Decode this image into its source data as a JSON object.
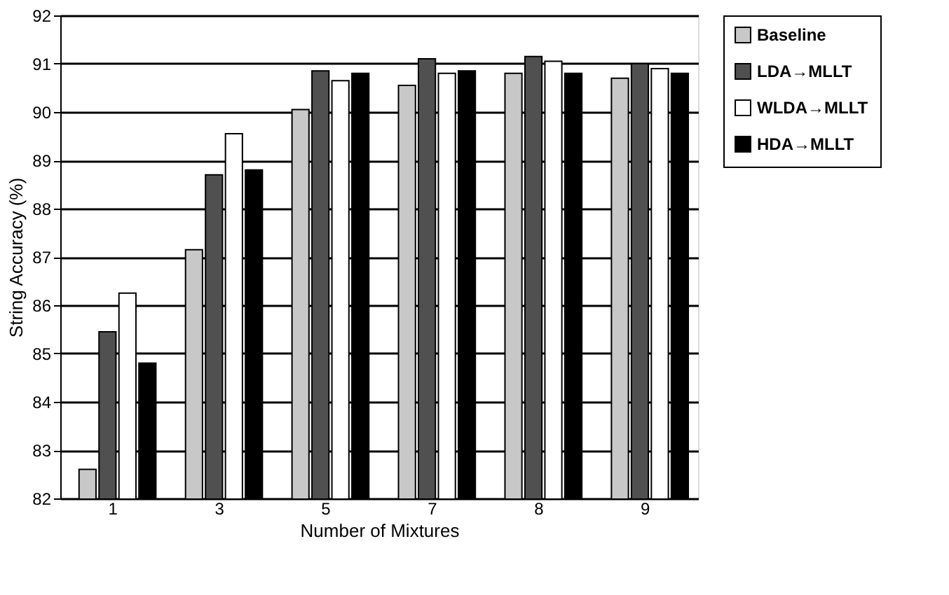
{
  "chart_data": {
    "type": "bar",
    "xlabel": "Number of Mixtures",
    "ylabel": "String Accuracy (%)",
    "categories": [
      "1",
      "3",
      "5",
      "7",
      "8",
      "9"
    ],
    "series": [
      {
        "name": "Baseline",
        "color": "#c8c8c8",
        "values": [
          82.6,
          87.15,
          90.05,
          90.55,
          90.8,
          90.7
        ]
      },
      {
        "name": "LDA→MLLT",
        "color": "#505050",
        "values": [
          85.45,
          88.7,
          90.85,
          91.1,
          91.15,
          91.0
        ]
      },
      {
        "name": "WLDA→MLLT",
        "color": "#ffffff",
        "values": [
          86.25,
          89.55,
          90.65,
          90.8,
          91.05,
          90.9
        ]
      },
      {
        "name": "HDA→MLLT",
        "color": "#000000",
        "values": [
          84.8,
          88.8,
          90.8,
          90.85,
          90.8,
          90.8
        ]
      }
    ],
    "ylim": [
      82,
      92
    ],
    "yticks": [
      82,
      83,
      84,
      85,
      86,
      87,
      88,
      89,
      90,
      91,
      92
    ],
    "grid": "y",
    "legend": "right"
  }
}
